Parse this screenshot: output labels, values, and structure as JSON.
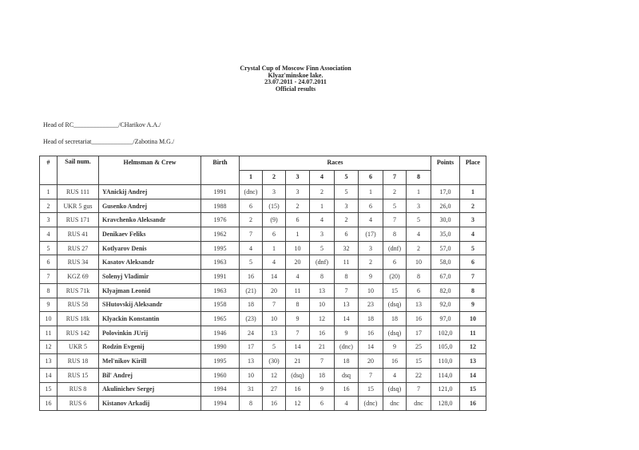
{
  "header": {
    "title": "Crystal Cup of Moscow Finn Association",
    "location": "Klyaz'minskoe lake.",
    "dates": "23.07.2011 - 24.07.2011",
    "subtitle": "Official results"
  },
  "signatures": [
    "Head of RC______________/CHarikov A.A./",
    "Head of secretariat_____________/Zabotina M.G./"
  ],
  "table": {
    "headers": {
      "num": "#",
      "sail": "Sail num.",
      "helmsman": "Helmsman & Crew",
      "birth": "Birth",
      "races": "Races",
      "race_numbers": [
        "1",
        "2",
        "3",
        "4",
        "5",
        "6",
        "7",
        "8"
      ],
      "points": "Points",
      "place": "Place"
    },
    "rows": [
      {
        "num": "1",
        "sail": "RUS 111",
        "name": "YAnickij Andrej",
        "birth": "1991",
        "races": [
          "(dnc)",
          "3",
          "3",
          "2",
          "5",
          "1",
          "2",
          "1"
        ],
        "points": "17,0",
        "place": "1"
      },
      {
        "num": "2",
        "sail": "UKR 5 gus",
        "name": "Gusenko Andrej",
        "birth": "1988",
        "races": [
          "6",
          "(15)",
          "2",
          "1",
          "3",
          "6",
          "5",
          "3"
        ],
        "points": "26,0",
        "place": "2"
      },
      {
        "num": "3",
        "sail": "RUS 171",
        "name": "Kravchenko Aleksandr",
        "birth": "1976",
        "races": [
          "2",
          "(9)",
          "6",
          "4",
          "2",
          "4",
          "7",
          "5"
        ],
        "points": "30,0",
        "place": "3"
      },
      {
        "num": "4",
        "sail": "RUS 41",
        "name": "Denikaev Feliks",
        "birth": "1962",
        "races": [
          "7",
          "6",
          "1",
          "3",
          "6",
          "(17)",
          "8",
          "4"
        ],
        "points": "35,0",
        "place": "4"
      },
      {
        "num": "5",
        "sail": "RUS 27",
        "name": "Kotlyarov Denis",
        "birth": "1995",
        "races": [
          "4",
          "1",
          "10",
          "5",
          "32",
          "3",
          "(dnf)",
          "2"
        ],
        "points": "57,0",
        "place": "5"
      },
      {
        "num": "6",
        "sail": "RUS 34",
        "name": "Kasatov Aleksandr",
        "birth": "1963",
        "races": [
          "5",
          "4",
          "20",
          "(dnf)",
          "11",
          "2",
          "6",
          "10"
        ],
        "points": "58,0",
        "place": "6"
      },
      {
        "num": "7",
        "sail": "KGZ 69",
        "name": "Solenyj Vladimir",
        "birth": "1991",
        "races": [
          "16",
          "14",
          "4",
          "8",
          "8",
          "9",
          "(20)",
          "8"
        ],
        "points": "67,0",
        "place": "7"
      },
      {
        "num": "8",
        "sail": "RUS 71k",
        "name": "Klyajman Leonid",
        "birth": "1963",
        "races": [
          "(21)",
          "20",
          "11",
          "13",
          "7",
          "10",
          "15",
          "6"
        ],
        "points": "82,0",
        "place": "8"
      },
      {
        "num": "9",
        "sail": "RUS 58",
        "name": "SHutovskij Aleksandr",
        "birth": "1958",
        "races": [
          "18",
          "7",
          "8",
          "10",
          "13",
          "23",
          "(dsq)",
          "13"
        ],
        "points": "92,0",
        "place": "9"
      },
      {
        "num": "10",
        "sail": "RUS 18k",
        "name": "Klyackin Konstantin",
        "birth": "1965",
        "races": [
          "(23)",
          "10",
          "9",
          "12",
          "14",
          "18",
          "18",
          "16"
        ],
        "points": "97,0",
        "place": "10"
      },
      {
        "num": "11",
        "sail": "RUS 142",
        "name": "Polovinkin JUrij",
        "birth": "1946",
        "races": [
          "24",
          "13",
          "7",
          "16",
          "9",
          "16",
          "(dsq)",
          "17"
        ],
        "points": "102,0",
        "place": "11"
      },
      {
        "num": "12",
        "sail": "UKR 5",
        "name": "Rodzin Evgenij",
        "birth": "1990",
        "races": [
          "17",
          "5",
          "14",
          "21",
          "(dnc)",
          "14",
          "9",
          "25"
        ],
        "points": "105,0",
        "place": "12"
      },
      {
        "num": "13",
        "sail": "RUS 18",
        "name": "Mel'nikov Kirill",
        "birth": "1995",
        "races": [
          "13",
          "(30)",
          "21",
          "7",
          "18",
          "20",
          "16",
          "15"
        ],
        "points": "110,0",
        "place": "13"
      },
      {
        "num": "14",
        "sail": "RUS 15",
        "name": "Bil' Andrej",
        "birth": "1960",
        "races": [
          "10",
          "12",
          "(dsq)",
          "18",
          "dsq",
          "7",
          "4",
          "22"
        ],
        "points": "114,0",
        "place": "14"
      },
      {
        "num": "15",
        "sail": "RUS 8",
        "name": "Akulinichev Sergej",
        "birth": "1994",
        "races": [
          "31",
          "27",
          "16",
          "9",
          "16",
          "15",
          "(dsq)",
          "7"
        ],
        "points": "121,0",
        "place": "15"
      },
      {
        "num": "16",
        "sail": "RUS 6",
        "name": "Kistanov Arkadij",
        "birth": "1994",
        "races": [
          "8",
          "16",
          "12",
          "6",
          "4",
          "(dnc)",
          "dnc",
          "dnc"
        ],
        "points": "128,0",
        "place": "16"
      }
    ]
  }
}
